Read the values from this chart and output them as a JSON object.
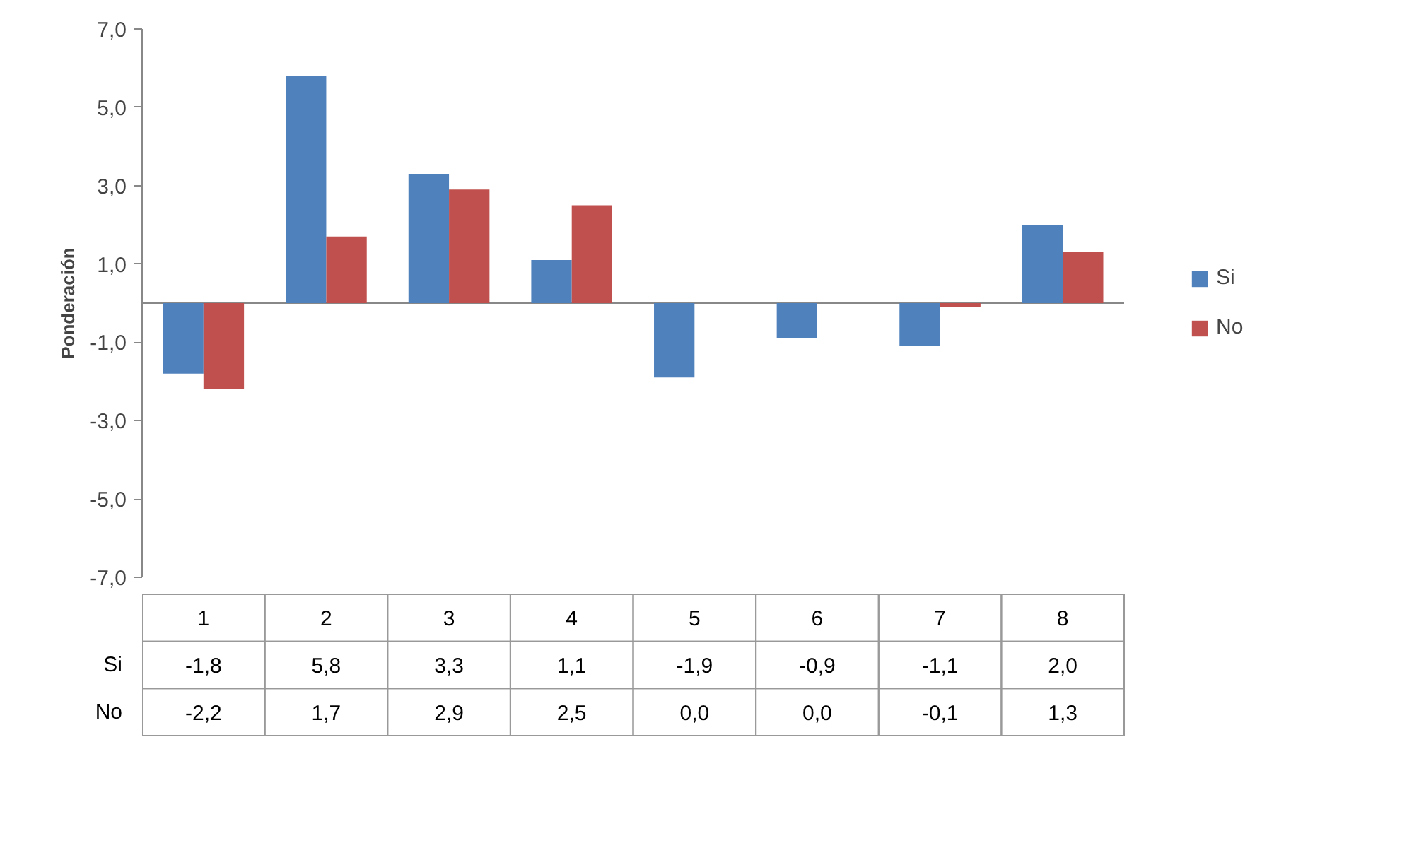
{
  "chart_data": {
    "type": "bar",
    "ylabel": "Ponderación",
    "categories": [
      "1",
      "2",
      "3",
      "4",
      "5",
      "6",
      "7",
      "8"
    ],
    "series": [
      {
        "name": "Si",
        "color": "#4f81bd",
        "values": [
          -1.8,
          5.8,
          3.3,
          1.1,
          -1.9,
          -0.9,
          -1.1,
          2.0
        ],
        "value_labels": [
          "-1,8",
          "5,8",
          "3,3",
          "1,1",
          "-1,9",
          "-0,9",
          "-1,1",
          "2,0"
        ]
      },
      {
        "name": "No",
        "color": "#c0504d",
        "values": [
          -2.2,
          1.7,
          2.9,
          2.5,
          0.0,
          0.0,
          -0.1,
          1.3
        ],
        "value_labels": [
          "-2,2",
          "1,7",
          "2,9",
          "2,5",
          "0,0",
          "0,0",
          "-0,1",
          "1,3"
        ]
      }
    ],
    "ylim": [
      -7,
      7
    ],
    "yticks": [
      {
        "value": -7,
        "label": "-7,0"
      },
      {
        "value": -5,
        "label": "-5,0"
      },
      {
        "value": -3,
        "label": "-3,0"
      },
      {
        "value": -1,
        "label": "-1,0"
      },
      {
        "value": 1,
        "label": "1,0"
      },
      {
        "value": 3,
        "label": "3,0"
      },
      {
        "value": 5,
        "label": "5,0"
      },
      {
        "value": 7,
        "label": "7,0"
      }
    ],
    "legend": "right"
  }
}
